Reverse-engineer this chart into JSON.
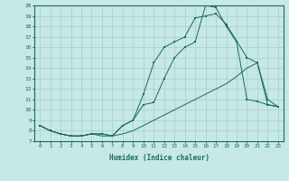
{
  "xlabel": "Humidex (Indice chaleur)",
  "bg_color": "#c6e8e6",
  "line_color": "#1a6b5a",
  "grid_color": "#a8cece",
  "xlim": [
    -0.5,
    23.5
  ],
  "ylim": [
    7,
    20
  ],
  "xticks": [
    0,
    1,
    2,
    3,
    4,
    5,
    6,
    7,
    8,
    9,
    10,
    11,
    12,
    13,
    14,
    15,
    16,
    17,
    18,
    19,
    20,
    21,
    22,
    23
  ],
  "yticks": [
    7,
    8,
    9,
    10,
    11,
    12,
    13,
    14,
    15,
    16,
    17,
    18,
    19,
    20
  ],
  "line1_x": [
    0,
    1,
    2,
    3,
    4,
    5,
    6,
    7,
    8,
    9,
    10,
    11,
    12,
    13,
    14,
    15,
    16,
    17,
    18,
    19,
    20,
    21,
    22,
    23
  ],
  "line1_y": [
    8.5,
    8.0,
    7.7,
    7.5,
    7.5,
    7.7,
    7.7,
    7.5,
    8.5,
    9.0,
    10.5,
    10.7,
    13.0,
    15.0,
    16.0,
    16.5,
    20.0,
    19.8,
    18.0,
    16.5,
    11.0,
    10.8,
    10.5,
    10.3
  ],
  "line2_x": [
    0,
    1,
    2,
    3,
    4,
    5,
    6,
    7,
    8,
    9,
    10,
    11,
    12,
    13,
    14,
    15,
    16,
    17,
    18,
    20,
    21,
    22,
    23
  ],
  "line2_y": [
    8.5,
    8.0,
    7.7,
    7.5,
    7.5,
    7.7,
    7.7,
    7.5,
    8.5,
    9.0,
    11.5,
    14.5,
    16.0,
    16.5,
    17.0,
    18.8,
    19.0,
    19.2,
    18.2,
    15.0,
    14.5,
    11.0,
    10.3
  ],
  "line3_x": [
    0,
    1,
    2,
    3,
    4,
    5,
    6,
    7,
    8,
    9,
    10,
    11,
    12,
    13,
    14,
    15,
    16,
    17,
    18,
    19,
    20,
    21,
    22,
    23
  ],
  "line3_y": [
    8.5,
    8.0,
    7.7,
    7.5,
    7.5,
    7.7,
    7.5,
    7.5,
    7.7,
    8.0,
    8.5,
    9.0,
    9.5,
    10.0,
    10.5,
    11.0,
    11.5,
    12.0,
    12.5,
    13.2,
    14.0,
    14.5,
    10.5,
    10.3
  ]
}
